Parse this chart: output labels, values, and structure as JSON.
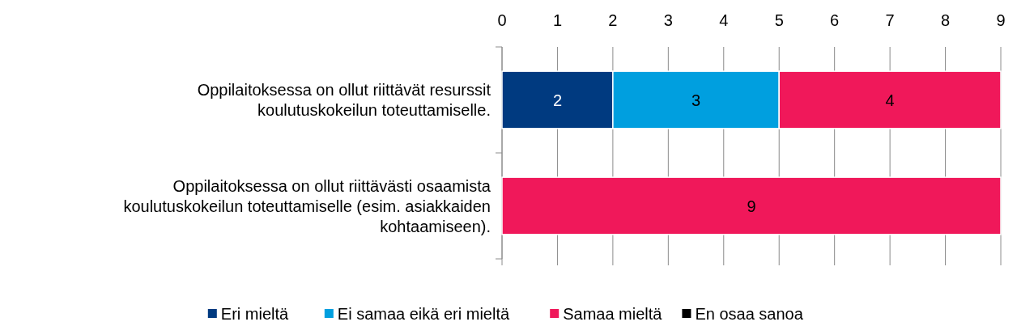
{
  "chart_data": {
    "type": "bar",
    "orientation": "horizontal",
    "stacked": true,
    "categories": [
      "Oppilaitoksessa on ollut riittävät resurssit koulutuskokeilun toteuttamiselle.",
      "Oppilaitoksessa on ollut riittävästi osaamista koulutuskokeilun toteuttamiselle (esim. asiakkaiden kohtaamiseen)."
    ],
    "series": [
      {
        "name": "Eri mieltä",
        "color": "#003a80",
        "values": [
          2,
          null
        ]
      },
      {
        "name": "Ei samaa eikä eri mieltä",
        "color": "#009fdf",
        "values": [
          3,
          null
        ]
      },
      {
        "name": "Samaa mieltä",
        "color": "#f0185a",
        "values": [
          4,
          9
        ]
      },
      {
        "name": "En osaa sanoa",
        "color": "#000000",
        "values": [
          null,
          null
        ]
      }
    ],
    "xlim": [
      0,
      9
    ],
    "xticks": [
      0,
      1,
      2,
      3,
      4,
      5,
      6,
      7,
      8,
      9
    ],
    "grid": "x",
    "legend": "bottom",
    "data_labels": true
  }
}
